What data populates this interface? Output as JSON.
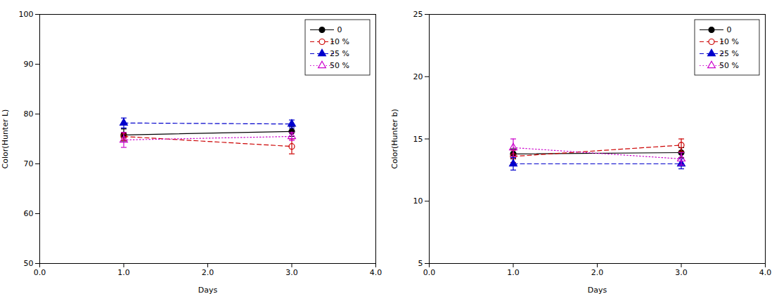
{
  "chart_data": [
    {
      "type": "line",
      "xlabel": "Days",
      "ylabel": "Color(Hunter L)",
      "x": [
        1,
        3
      ],
      "xlim": [
        0,
        4
      ],
      "ylim": [
        50,
        100
      ],
      "xticks": [
        0,
        1,
        2,
        3,
        4
      ],
      "yticks": [
        50,
        60,
        70,
        80,
        90,
        100
      ],
      "legend": "upper right",
      "series": [
        {
          "name": "0",
          "color": "#000000",
          "line_style": "solid",
          "marker": "circle",
          "values": [
            75.8,
            76.5
          ],
          "yerr": [
            1.2,
            1.0
          ]
        },
        {
          "name": "10 %",
          "color": "#cc0000",
          "line_style": "dashed",
          "marker": "circle-open",
          "values": [
            75.5,
            73.5
          ],
          "yerr": [
            0.8,
            1.5
          ]
        },
        {
          "name": "25 %",
          "color": "#0000cc",
          "line_style": "dashed",
          "marker": "triangle",
          "values": [
            78.2,
            78.0
          ],
          "yerr": [
            1.0,
            0.8
          ]
        },
        {
          "name": "50 %",
          "color": "#cc00cc",
          "line_style": "dotted",
          "marker": "triangle-open",
          "values": [
            74.8,
            75.5
          ],
          "yerr": [
            1.5,
            0.8
          ]
        }
      ]
    },
    {
      "type": "line",
      "xlabel": "Days",
      "ylabel": "Color(Hunter b)",
      "x": [
        1,
        3
      ],
      "xlim": [
        0,
        4
      ],
      "ylim": [
        5,
        25
      ],
      "xticks": [
        0,
        1,
        2,
        3,
        4
      ],
      "yticks": [
        5,
        10,
        15,
        20,
        25
      ],
      "legend": "upper right",
      "series": [
        {
          "name": "0",
          "color": "#000000",
          "line_style": "solid",
          "marker": "circle",
          "values": [
            13.8,
            13.9
          ],
          "yerr": [
            0.4,
            0.4
          ]
        },
        {
          "name": "10 %",
          "color": "#cc0000",
          "line_style": "dashed",
          "marker": "circle-open",
          "values": [
            13.6,
            14.5
          ],
          "yerr": [
            0.5,
            0.5
          ]
        },
        {
          "name": "25 %",
          "color": "#0000cc",
          "line_style": "dashed",
          "marker": "triangle",
          "values": [
            13.0,
            13.0
          ],
          "yerr": [
            0.5,
            0.4
          ]
        },
        {
          "name": "50 %",
          "color": "#cc00cc",
          "line_style": "dotted",
          "marker": "triangle-open",
          "values": [
            14.3,
            13.4
          ],
          "yerr": [
            0.7,
            0.5
          ]
        }
      ]
    }
  ]
}
